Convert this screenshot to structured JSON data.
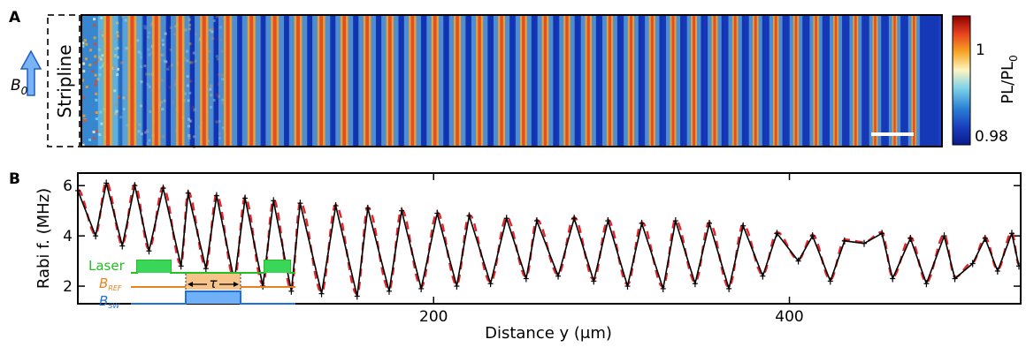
{
  "panel_a": {
    "label": "A",
    "stripline_label": "Stripline",
    "b0_label": "B",
    "b0_sub": "0",
    "colorbar": {
      "title_main": "PL/PL",
      "title_sub": "0",
      "max_label": "1",
      "min_label": "0.98",
      "colors": [
        "#8b0000",
        "#e8431f",
        "#f5a623",
        "#fff4c2",
        "#7fd3e8",
        "#2a7fd4",
        "#1a3fbf",
        "#0a1a8c"
      ]
    },
    "stripe_count": 38
  },
  "panel_b": {
    "label": "B",
    "inset": {
      "laser_label": "Laser",
      "bref_label": "B",
      "bref_sub": "REF",
      "bsw_label": "B",
      "bsw_sub": "SW",
      "tau_label": "τ",
      "laser_color": "#22c022",
      "bref_color": "#e8821f",
      "bsw_color": "#1e6fe0"
    }
  },
  "chart_data": {
    "type": "line",
    "title": "",
    "xlabel": "Distance y (μm)",
    "ylabel": "Rabi f. (MHz)",
    "xlim": [
      0,
      530
    ],
    "ylim": [
      1.3,
      6.5
    ],
    "xticks": [
      200,
      400
    ],
    "yticks": [
      2,
      4,
      6
    ],
    "grid": false,
    "legend": "none",
    "series": [
      {
        "style": "black line with error-bar markers",
        "color": "#000000",
        "x": [
          0,
          10,
          16,
          25,
          32,
          40,
          48,
          58,
          62,
          72,
          78,
          88,
          94,
          104,
          110,
          120,
          125,
          137,
          145,
          157,
          163,
          175,
          182,
          193,
          202,
          213,
          220,
          232,
          241,
          252,
          258,
          270,
          279,
          290,
          298,
          309,
          317,
          329,
          336,
          347,
          355,
          366,
          374,
          385,
          393,
          405,
          413,
          423,
          431,
          442,
          452,
          458,
          468,
          477,
          487,
          493,
          503,
          510,
          517,
          525,
          529
        ],
        "y": [
          5.8,
          4.0,
          6.1,
          3.6,
          6.0,
          3.4,
          5.9,
          2.8,
          5.7,
          2.7,
          5.6,
          2.2,
          5.5,
          2.0,
          5.4,
          1.8,
          5.3,
          1.7,
          5.2,
          1.6,
          5.1,
          1.8,
          5.0,
          1.9,
          4.9,
          2.0,
          4.8,
          2.1,
          4.7,
          2.3,
          4.6,
          2.4,
          4.7,
          2.2,
          4.6,
          2.0,
          4.5,
          1.9,
          4.6,
          2.1,
          4.5,
          1.9,
          4.4,
          2.4,
          4.1,
          3.0,
          4.0,
          2.2,
          3.8,
          3.7,
          4.1,
          2.3,
          3.9,
          2.1,
          4.0,
          2.3,
          2.9,
          3.9,
          2.6,
          4.1,
          2.8
        ]
      },
      {
        "style": "red dashed fit",
        "color": "#e3262b",
        "amplitude_start": 1.2,
        "amplitude_end": 1.6,
        "mean": 4.2,
        "note": ""
      }
    ]
  }
}
